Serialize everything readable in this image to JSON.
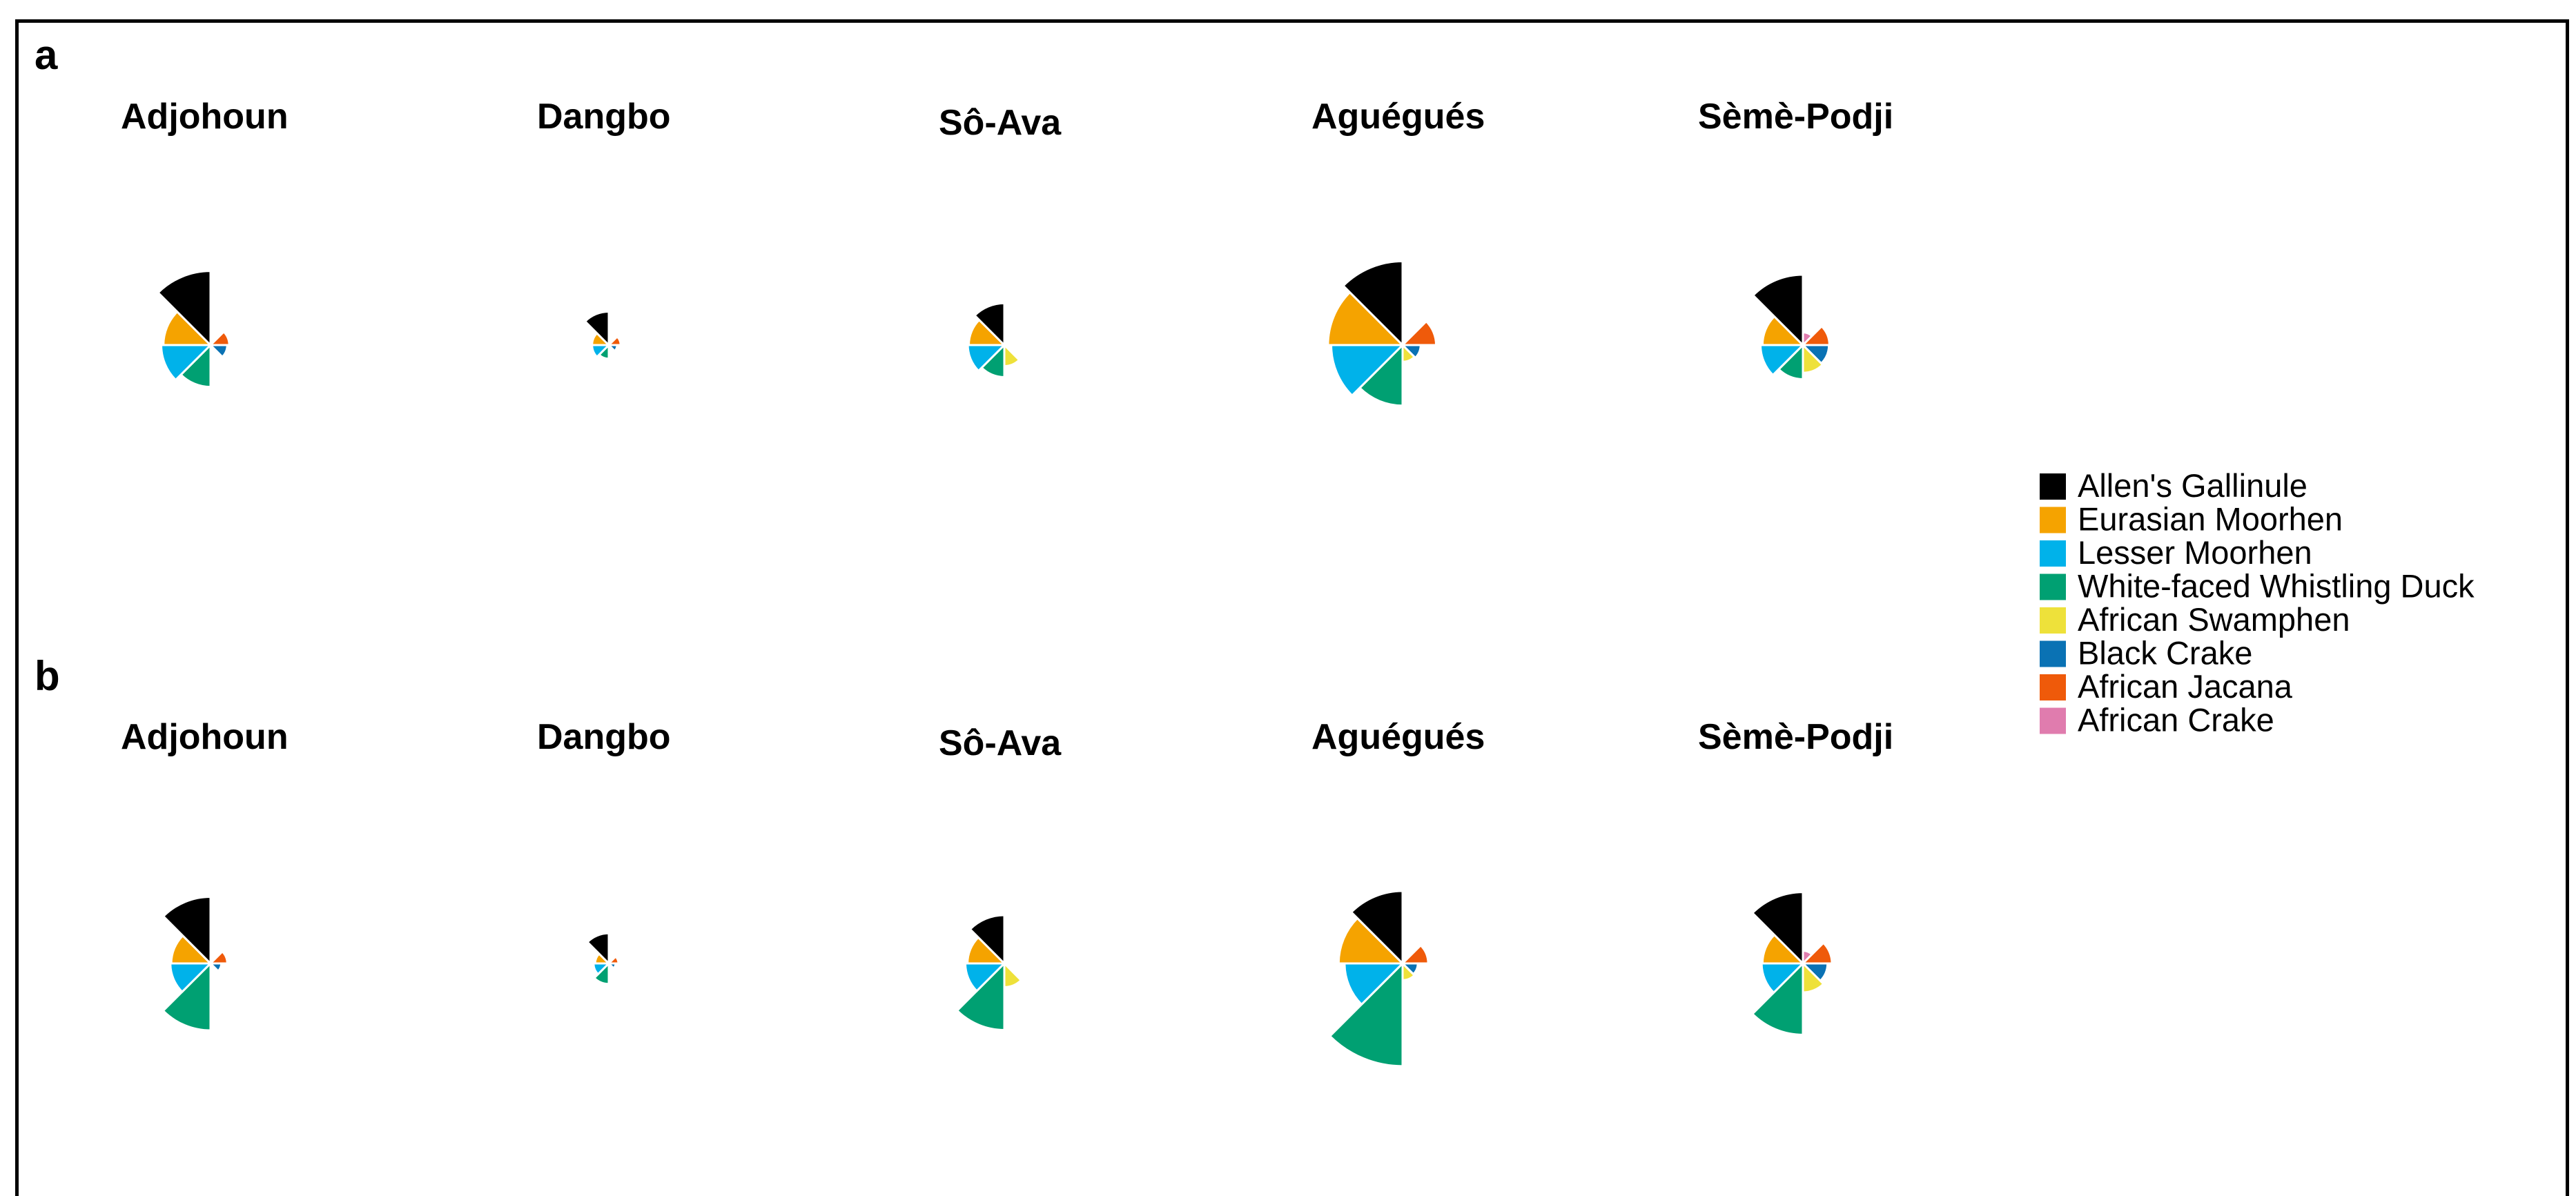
{
  "chart_data": {
    "type": "pie",
    "legend": {
      "placement": "right",
      "entries": [
        {
          "name": "Allen's Gallinule",
          "color": "#000000"
        },
        {
          "name": "Eurasian Moorhen",
          "color": "#F5A300"
        },
        {
          "name": "Lesser Moorhen",
          "color": "#00B2EA"
        },
        {
          "name": "White-faced Whistling Duck",
          "color": "#00A072"
        },
        {
          "name": "African Swamphen",
          "color": "#EEE13A"
        },
        {
          "name": "Black Crake",
          "color": "#0A72B4"
        },
        {
          "name": "African Jacana",
          "color": "#EF5A0A"
        },
        {
          "name": "African Crake",
          "color": "#E07CAE"
        }
      ]
    },
    "panels": [
      {
        "label": "a",
        "pies": [
          {
            "title": "Adjohoun",
            "values": [
              23.5,
              9.5,
              10.4,
              7.5,
              0.0,
              1.2,
              1.5,
              0.0
            ]
          },
          {
            "title": "Dangbo",
            "values": [
              4.8,
              1.2,
              1.2,
              0.8,
              0.0,
              0.3,
              0.6,
              0.0
            ]
          },
          {
            "title": "Sô-Ava",
            "values": [
              7.5,
              5.4,
              5.7,
              4.4,
              1.9,
              0.0,
              0.0,
              0.0
            ]
          },
          {
            "title": "Aguégués",
            "values": [
              30.1,
              23.8,
              21.8,
              15.7,
              1.2,
              1.4,
              4.8,
              0.0
            ]
          },
          {
            "title": "Sèmè-Podji",
            "values": [
              21.2,
              7.0,
              7.7,
              5.0,
              3.3,
              2.9,
              3.0,
              0.7
            ]
          }
        ]
      },
      {
        "label": "b",
        "pies": [
          {
            "title": "Adjohoun",
            "values": [
              19.0,
              6.6,
              6.9,
              19.2,
              0.0,
              0.5,
              1.2,
              0.0
            ]
          },
          {
            "title": "Dangbo",
            "values": [
              3.9,
              0.8,
              1.0,
              1.8,
              0.0,
              0.2,
              0.4,
              0.0
            ]
          },
          {
            "title": "Sô-Ava",
            "values": [
              10.0,
              5.8,
              6.5,
              19.0,
              2.4,
              0.0,
              0.0,
              0.0
            ]
          },
          {
            "title": "Aguégués",
            "values": [
              22.5,
              17.5,
              14.4,
              45.2,
              1.2,
              1.0,
              2.8,
              0.0
            ]
          },
          {
            "title": "Sèmè-Podji",
            "values": [
              21.8,
              7.0,
              7.3,
              21.8,
              3.6,
              2.6,
              3.6,
              0.7
            ]
          }
        ]
      }
    ]
  }
}
